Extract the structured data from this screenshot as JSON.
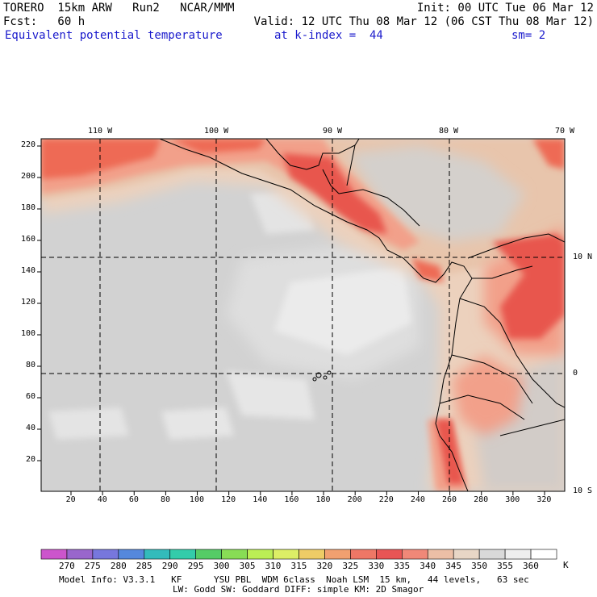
{
  "header": {
    "model": "TORERO  15km ARW   Run2   NCAR/MMM",
    "init": "Init: 00 UTC Tue 06 Mar 12",
    "fcst": "Fcst:   60 h",
    "valid": "Valid: 12 UTC Thu 08 Mar 12 (06 CST Thu 08 Mar 12)",
    "field": "Equivalent potential temperature",
    "level": "at k-index =  44",
    "smooth": "sm= 2"
  },
  "map": {
    "lon_labels": [
      "110 W",
      "100 W",
      "90 W",
      "80 W",
      "70 W"
    ],
    "lat_labels": [
      "10 N",
      "0",
      "10 S"
    ],
    "y_grid_labels": [
      "220",
      "200",
      "180",
      "160",
      "140",
      "120",
      "100",
      "80",
      "60",
      "40",
      "20"
    ],
    "x_grid_labels": [
      "20",
      "40",
      "60",
      "80",
      "100",
      "120",
      "140",
      "160",
      "180",
      "200",
      "220",
      "240",
      "260",
      "280",
      "300",
      "320"
    ],
    "colors": {
      "gray_light": "#d2d2d2",
      "gray_mid": "#cbcbcb",
      "gray_pale": "#e6e6e6",
      "white_patch": "#f2f2f2",
      "tan_light": "#ecd1bd",
      "tan": "#e8c5ac",
      "salmon": "#f2a08a",
      "red_orange": "#ee6a55",
      "red": "#e8564e"
    }
  },
  "colorbar": {
    "labels": [
      "270",
      "275",
      "280",
      "285",
      "290",
      "295",
      "300",
      "305",
      "310",
      "315",
      "320",
      "325",
      "330",
      "335",
      "340",
      "345",
      "350",
      "355",
      "360"
    ],
    "unit": "K",
    "colors": [
      "#cc55cc",
      "#9966cc",
      "#7777dd",
      "#5588dd",
      "#33bbbb",
      "#33ccaa",
      "#55cc66",
      "#88dd55",
      "#bbee55",
      "#ddee66",
      "#eecc66",
      "#f1a070",
      "#ee7766",
      "#e85555",
      "#f08878",
      "#ecbfa6",
      "#e8d6c6",
      "#d9d9d9",
      "#eeeeee",
      "#ffffff"
    ]
  },
  "footer": {
    "line1": "Model Info: V3.3.1   KF      YSU PBL  WDM 6class  Noah LSM  15 km,   44 levels,   63 sec",
    "line2": "LW: Godd SW: Goddard DIFF: simple KM: 2D Smagor"
  }
}
